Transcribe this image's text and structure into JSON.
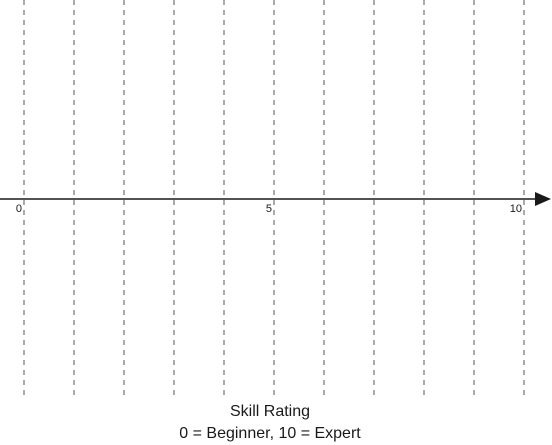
{
  "scale": {
    "min": 0,
    "max": 10,
    "gridline_count": 11,
    "labels": [
      {
        "value": 0,
        "text": "0"
      },
      {
        "value": 5,
        "text": "5"
      },
      {
        "value": 10,
        "text": "10"
      }
    ],
    "line_color": "#1a1a1a",
    "grid_color": "#555555"
  },
  "caption": {
    "title": "Skill Rating",
    "subtitle": "0 = Beginner, 10 = Expert"
  }
}
